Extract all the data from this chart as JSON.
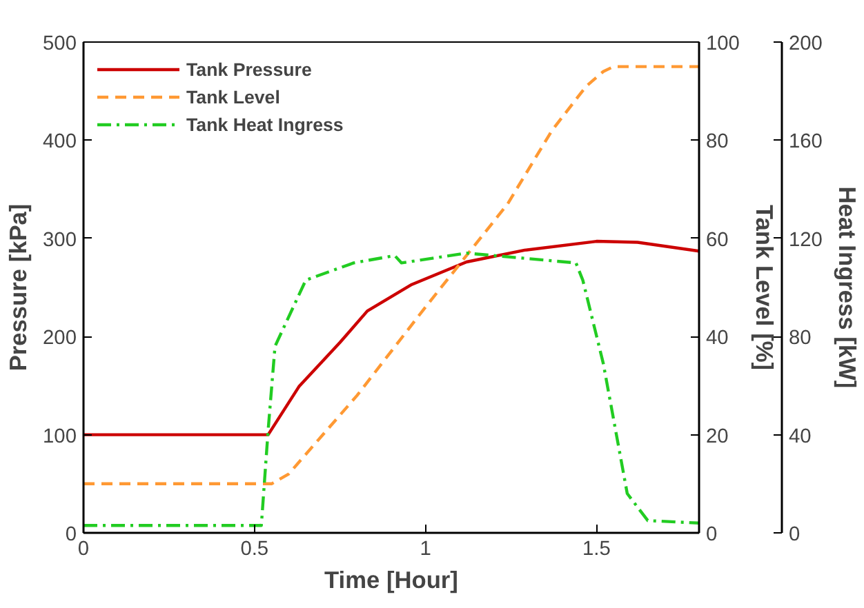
{
  "chart_data": {
    "type": "line",
    "xlabel": "Time [Hour]",
    "ylabel": "Pressure [kPa]",
    "y2label": "Tank Level [%]",
    "y3label": "Heat Ingress [kW]",
    "xlim": [
      0,
      1.8
    ],
    "xticks": [
      0,
      0.5,
      1,
      1.5
    ],
    "ylim": [
      0,
      500
    ],
    "yticks": [
      0,
      100,
      200,
      300,
      400,
      500
    ],
    "y2lim": [
      0,
      100
    ],
    "y2ticks": [
      0,
      20,
      40,
      60,
      80,
      100
    ],
    "y3lim": [
      0,
      200
    ],
    "y3ticks": [
      0,
      40,
      80,
      120,
      160,
      200
    ],
    "grid": false,
    "legend": "top left",
    "series": [
      {
        "name": "Tank Pressure",
        "color": "#cc0000",
        "line_style": "solid",
        "x": [
          0,
          0.54,
          0.63,
          0.75,
          0.83,
          0.96,
          1.12,
          1.29,
          1.5,
          1.62,
          1.8
        ],
        "values": [
          100,
          100,
          149,
          194,
          226,
          253,
          276,
          288,
          297,
          296,
          287
        ]
      },
      {
        "name": "Tank Level",
        "color": "#ff9933",
        "line_style": "dashed",
        "axis": "y2",
        "x": [
          0,
          0.55,
          0.6,
          0.8,
          1.0,
          1.24,
          1.37,
          1.47,
          1.52,
          1.55,
          1.8
        ],
        "values": [
          10,
          10,
          12,
          28,
          46,
          67,
          82,
          91,
          94,
          95,
          95
        ]
      },
      {
        "name": "Tank Heat Ingress",
        "color": "#22cc22",
        "line_style": "dashdot",
        "axis": "y3",
        "x": [
          0,
          0.52,
          0.54,
          0.56,
          0.65,
          0.79,
          0.91,
          0.93,
          1.12,
          1.44,
          1.46,
          1.52,
          1.59,
          1.65,
          1.8
        ],
        "values": [
          3,
          3,
          42,
          76,
          103,
          110,
          113,
          110,
          114,
          110,
          103,
          69,
          16,
          5,
          4
        ]
      }
    ]
  }
}
